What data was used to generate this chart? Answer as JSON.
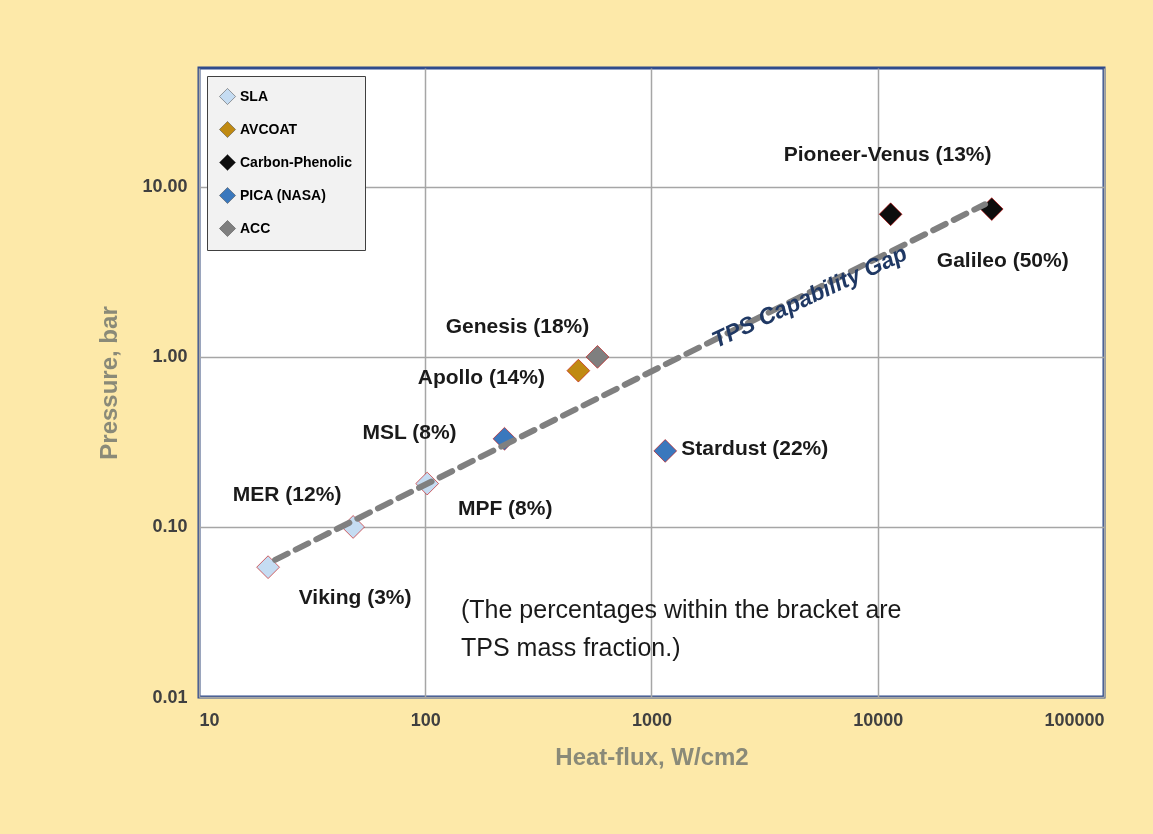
{
  "chart_data": {
    "type": "scatter",
    "xlabel": "Heat-flux, W/cm2",
    "ylabel": "Pressure, bar",
    "log": "xy",
    "xlim": [
      10,
      100000
    ],
    "xticks": [
      10,
      100,
      {
        "value": 1000,
        "label": "1000"
      },
      {
        "value": 10000,
        "label": "10000"
      },
      {
        "value": 100000,
        "label": "100000"
      }
    ],
    "ylim": [
      0.01,
      50
    ],
    "yticks": [
      {
        "value": 0.01,
        "label": "0.01"
      },
      {
        "value": 0.1,
        "label": "0.10"
      },
      {
        "value": 1,
        "label": "1.00"
      },
      {
        "value": 10,
        "label": "10.00"
      }
    ],
    "grid": true,
    "legend": "top left",
    "marker": "diamond",
    "series": [
      {
        "name": "SLA",
        "color": "#c5dcf2",
        "x": [
          20.2,
          48,
          102
        ],
        "values": [
          0.058,
          0.1,
          0.18
        ]
      },
      {
        "name": "AVCOAT",
        "color": "#c08a12",
        "x": [
          475
        ],
        "values": [
          0.83
        ]
      },
      {
        "name": "Carbon-Phenolic",
        "color": "#0d0d0d",
        "x": [
          11400,
          31900
        ],
        "values": [
          6.9,
          7.4
        ]
      },
      {
        "name": "PICA (NASA)",
        "color": "#3a78bd",
        "x": [
          224,
          1150
        ],
        "values": [
          0.33,
          0.28
        ]
      },
      {
        "name": "ACC",
        "color": "#7f7f7f",
        "x": [
          577
        ],
        "values": [
          1.0
        ]
      },
      {
        "type": "line",
        "line_style": "dashed",
        "color": "#808080",
        "marker": "none",
        "x": [
          21.7,
          29800
        ],
        "values": [
          0.064,
          7.9
        ]
      }
    ],
    "annotations": [
      {
        "text": "Viking (3%)",
        "x": 20.2,
        "y": 0.058
      },
      {
        "text": "MER (12%)",
        "x": 48,
        "y": 0.1
      },
      {
        "text": "MPF (8%)",
        "x": 102,
        "y": 0.18
      },
      {
        "text": "MSL (8%)",
        "x": 224,
        "y": 0.33
      },
      {
        "text": "Apollo (14%)",
        "x": 475,
        "y": 0.83
      },
      {
        "text": "Genesis (18%)",
        "x": 577,
        "y": 1.0
      },
      {
        "text": "Stardust (22%)",
        "x": 1150,
        "y": 0.28
      },
      {
        "text": "Pioneer-Venus (13%)",
        "x": 11400,
        "y": 6.9
      },
      {
        "text": "Galileo (50%)",
        "x": 31900,
        "y": 7.4
      },
      {
        "text": "TPS Capability Gap",
        "x": 5000,
        "y": 2.25
      },
      "(The percentages within the bracket are\nTPS mass fraction.)"
    ]
  }
}
